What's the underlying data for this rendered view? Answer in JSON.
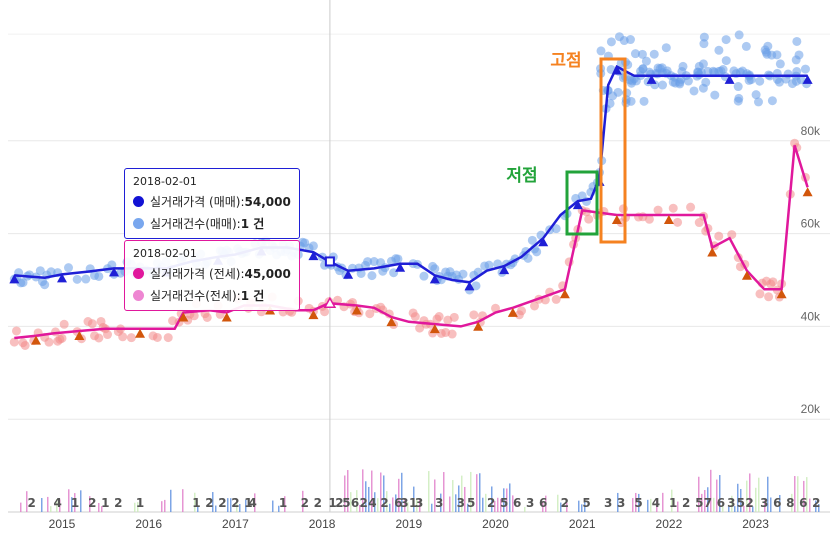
{
  "chart_data": {
    "type": "line",
    "x_axis": {
      "ticks": [
        "2015",
        "2016",
        "2017",
        "2018",
        "2019",
        "2020",
        "2021",
        "2022",
        "2023"
      ]
    },
    "y_axis": {
      "ticks": [
        "20k",
        "40k",
        "60k",
        "80k"
      ],
      "ticks_values": [
        20000,
        40000,
        60000,
        80000
      ],
      "range": [
        0,
        105000
      ]
    },
    "series": [
      {
        "name": "실거래가격 (매매)",
        "color": "#1f1fd6",
        "points": [
          [
            2014.45,
            51000
          ],
          [
            2014.8,
            50500
          ],
          [
            2015.0,
            51200
          ],
          [
            2015.3,
            51800
          ],
          [
            2015.6,
            52500
          ],
          [
            2015.9,
            52500
          ],
          [
            2016.2,
            52500
          ],
          [
            2016.5,
            54000
          ],
          [
            2016.8,
            55000
          ],
          [
            2017.0,
            55500
          ],
          [
            2017.3,
            57000
          ],
          [
            2017.6,
            57000
          ],
          [
            2017.9,
            56000
          ],
          [
            2018.08,
            54000
          ],
          [
            2018.3,
            52000
          ],
          [
            2018.6,
            52500
          ],
          [
            2018.9,
            53500
          ],
          [
            2019.1,
            53500
          ],
          [
            2019.3,
            51000
          ],
          [
            2019.5,
            50000
          ],
          [
            2019.7,
            49500
          ],
          [
            2019.9,
            52000
          ],
          [
            2020.1,
            53000
          ],
          [
            2020.3,
            55000
          ],
          [
            2020.55,
            59000
          ],
          [
            2020.75,
            64000
          ],
          [
            2020.95,
            67000
          ],
          [
            2021.1,
            67500
          ],
          [
            2021.2,
            72000
          ],
          [
            2021.3,
            92000
          ],
          [
            2021.4,
            96000
          ],
          [
            2021.6,
            94000
          ],
          [
            2021.8,
            94000
          ],
          [
            2022.2,
            94000
          ],
          [
            2022.7,
            94000
          ],
          [
            2023.2,
            94000
          ],
          [
            2023.6,
            94000
          ]
        ]
      },
      {
        "name": "실거래가격 (전세)",
        "color": "#e0189c",
        "points": [
          [
            2014.45,
            37500
          ],
          [
            2014.7,
            38000
          ],
          [
            2014.9,
            38500
          ],
          [
            2015.2,
            39000
          ],
          [
            2015.5,
            39500
          ],
          [
            2015.9,
            39500
          ],
          [
            2016.3,
            39500
          ],
          [
            2016.4,
            43000
          ],
          [
            2016.7,
            43500
          ],
          [
            2016.9,
            43000
          ],
          [
            2017.1,
            44500
          ],
          [
            2017.4,
            44500
          ],
          [
            2017.7,
            43500
          ],
          [
            2017.9,
            43500
          ],
          [
            2018.08,
            45000
          ],
          [
            2018.4,
            44500
          ],
          [
            2018.6,
            44000
          ],
          [
            2018.8,
            42000
          ],
          [
            2019.0,
            41000
          ],
          [
            2019.3,
            40500
          ],
          [
            2019.6,
            40000
          ],
          [
            2019.8,
            41000
          ],
          [
            2020.0,
            43000
          ],
          [
            2020.2,
            44000
          ],
          [
            2020.5,
            46000
          ],
          [
            2020.8,
            48000
          ],
          [
            2021.0,
            65000
          ],
          [
            2021.4,
            64000
          ],
          [
            2021.7,
            64000
          ],
          [
            2022.0,
            64000
          ],
          [
            2022.4,
            64000
          ],
          [
            2022.5,
            57000
          ],
          [
            2022.7,
            59000
          ],
          [
            2022.9,
            52000
          ],
          [
            2023.1,
            48000
          ],
          [
            2023.3,
            48000
          ],
          [
            2023.45,
            79000
          ],
          [
            2023.6,
            70000
          ]
        ]
      }
    ],
    "tooltip_sale": {
      "date": "2018-02-01",
      "price_label": "실거래가격 (매매): ",
      "price_value": "54,000",
      "count_label": "실거래건수(매매): ",
      "count_value": "1 건",
      "price_color": "#1212d4",
      "count_color": "#79a7ee"
    },
    "tooltip_jeonse": {
      "date": "2018-02-01",
      "price_label": "실거래가격 (전세): ",
      "price_value": "45,000",
      "count_label": "실거래건수(전세): ",
      "count_value": "1 건",
      "price_color": "#e0189c",
      "count_color": "#ee86d2"
    },
    "annotations": {
      "low_label": "저점",
      "high_label": "고점",
      "low_color": "#22a33a",
      "high_color": "#f58220"
    },
    "volume_labels": [
      [
        2014.65,
        "2"
      ],
      [
        2014.95,
        "4"
      ],
      [
        2015.15,
        "1"
      ],
      [
        2015.35,
        "2"
      ],
      [
        2015.5,
        "1"
      ],
      [
        2015.65,
        "2"
      ],
      [
        2015.9,
        "1"
      ],
      [
        2016.55,
        "1"
      ],
      [
        2016.7,
        "2"
      ],
      [
        2016.85,
        "2"
      ],
      [
        2017.0,
        "2"
      ],
      [
        2017.15,
        "1"
      ],
      [
        2017.2,
        "4"
      ],
      [
        2017.55,
        "1"
      ],
      [
        2017.8,
        "2"
      ],
      [
        2017.95,
        "2"
      ],
      [
        2018.12,
        "1"
      ],
      [
        2018.2,
        "2"
      ],
      [
        2018.28,
        "5"
      ],
      [
        2018.38,
        "6"
      ],
      [
        2018.48,
        "2"
      ],
      [
        2018.58,
        "4"
      ],
      [
        2018.72,
        "2"
      ],
      [
        2018.88,
        "6"
      ],
      [
        2018.95,
        "3"
      ],
      [
        2019.05,
        "1"
      ],
      [
        2019.12,
        "3"
      ],
      [
        2019.35,
        "3"
      ],
      [
        2019.6,
        "3"
      ],
      [
        2019.72,
        "5"
      ],
      [
        2019.95,
        "2"
      ],
      [
        2020.1,
        "5"
      ],
      [
        2020.25,
        "6"
      ],
      [
        2020.4,
        "3"
      ],
      [
        2020.55,
        "6"
      ],
      [
        2020.8,
        "2"
      ],
      [
        2021.05,
        "5"
      ],
      [
        2021.3,
        "3"
      ],
      [
        2021.45,
        "3"
      ],
      [
        2021.65,
        "5"
      ],
      [
        2021.85,
        "4"
      ],
      [
        2022.05,
        "1"
      ],
      [
        2022.2,
        "2"
      ],
      [
        2022.35,
        "5"
      ],
      [
        2022.45,
        "7"
      ],
      [
        2022.6,
        "6"
      ],
      [
        2022.72,
        "3"
      ],
      [
        2022.83,
        "5"
      ],
      [
        2022.93,
        "2"
      ],
      [
        2023.1,
        "3"
      ],
      [
        2023.25,
        "6"
      ],
      [
        2023.4,
        "8"
      ],
      [
        2023.55,
        "6"
      ],
      [
        2023.7,
        "2"
      ]
    ]
  }
}
